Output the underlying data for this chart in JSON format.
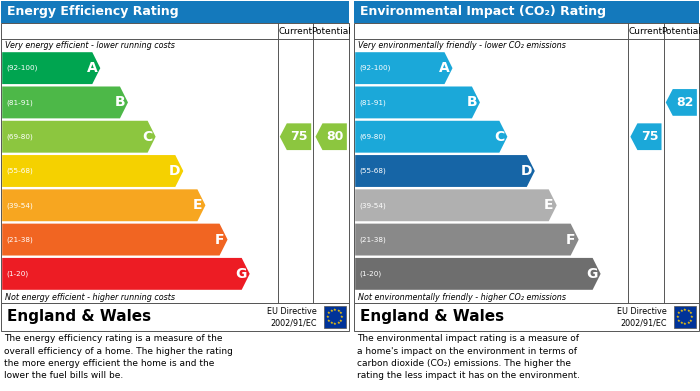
{
  "left_title": "Energy Efficiency Rating",
  "right_title": "Environmental Impact (CO₂) Rating",
  "header_bg": "#1479bc",
  "bands_epc": [
    {
      "label": "A",
      "range": "(92-100)",
      "color": "#00a550",
      "wf": 0.33
    },
    {
      "label": "B",
      "range": "(81-91)",
      "color": "#4db848",
      "wf": 0.43
    },
    {
      "label": "C",
      "range": "(69-80)",
      "color": "#8cc63f",
      "wf": 0.53
    },
    {
      "label": "D",
      "range": "(55-68)",
      "color": "#f5d100",
      "wf": 0.63
    },
    {
      "label": "E",
      "range": "(39-54)",
      "color": "#f7a620",
      "wf": 0.71
    },
    {
      "label": "F",
      "range": "(21-38)",
      "color": "#f16522",
      "wf": 0.79
    },
    {
      "label": "G",
      "range": "(1-20)",
      "color": "#ed1c24",
      "wf": 0.87
    }
  ],
  "bands_co2": [
    {
      "label": "A",
      "range": "(92-100)",
      "color": "#1ba8d9",
      "wf": 0.33
    },
    {
      "label": "B",
      "range": "(81-91)",
      "color": "#1ba8d9",
      "wf": 0.43
    },
    {
      "label": "C",
      "range": "(69-80)",
      "color": "#1ba8d9",
      "wf": 0.53
    },
    {
      "label": "D",
      "range": "(55-68)",
      "color": "#1665a6",
      "wf": 0.63
    },
    {
      "label": "E",
      "range": "(39-54)",
      "color": "#b0b0b0",
      "wf": 0.71
    },
    {
      "label": "F",
      "range": "(21-38)",
      "color": "#898989",
      "wf": 0.79
    },
    {
      "label": "G",
      "range": "(1-20)",
      "color": "#6e6e6e",
      "wf": 0.87
    }
  ],
  "epc_current": 75,
  "epc_potential": 80,
  "epc_current_color": "#8cc63f",
  "epc_potential_color": "#8cc63f",
  "co2_current": 75,
  "co2_potential": 82,
  "co2_current_color": "#1ba8d9",
  "co2_potential_color": "#1ba8d9",
  "top_label_epc": "Very energy efficient - lower running costs",
  "bot_label_epc": "Not energy efficient - higher running costs",
  "top_label_co2": "Very environmentally friendly - lower CO₂ emissions",
  "bot_label_co2": "Not environmentally friendly - higher CO₂ emissions",
  "footer_left": "England & Wales",
  "footer_right": "EU Directive\n2002/91/EC",
  "desc_epc": "The energy efficiency rating is a measure of the\noverall efficiency of a home. The higher the rating\nthe more energy efficient the home is and the\nlower the fuel bills will be.",
  "desc_co2": "The environmental impact rating is a measure of\na home's impact on the environment in terms of\ncarbon dioxide (CO₂) emissions. The higher the\nrating the less impact it has on the environment.",
  "col_current": "Current",
  "col_potential": "Potential",
  "band_ranges": [
    [
      92,
      100
    ],
    [
      81,
      91
    ],
    [
      69,
      80
    ],
    [
      55,
      68
    ],
    [
      39,
      54
    ],
    [
      21,
      38
    ],
    [
      1,
      20
    ]
  ]
}
